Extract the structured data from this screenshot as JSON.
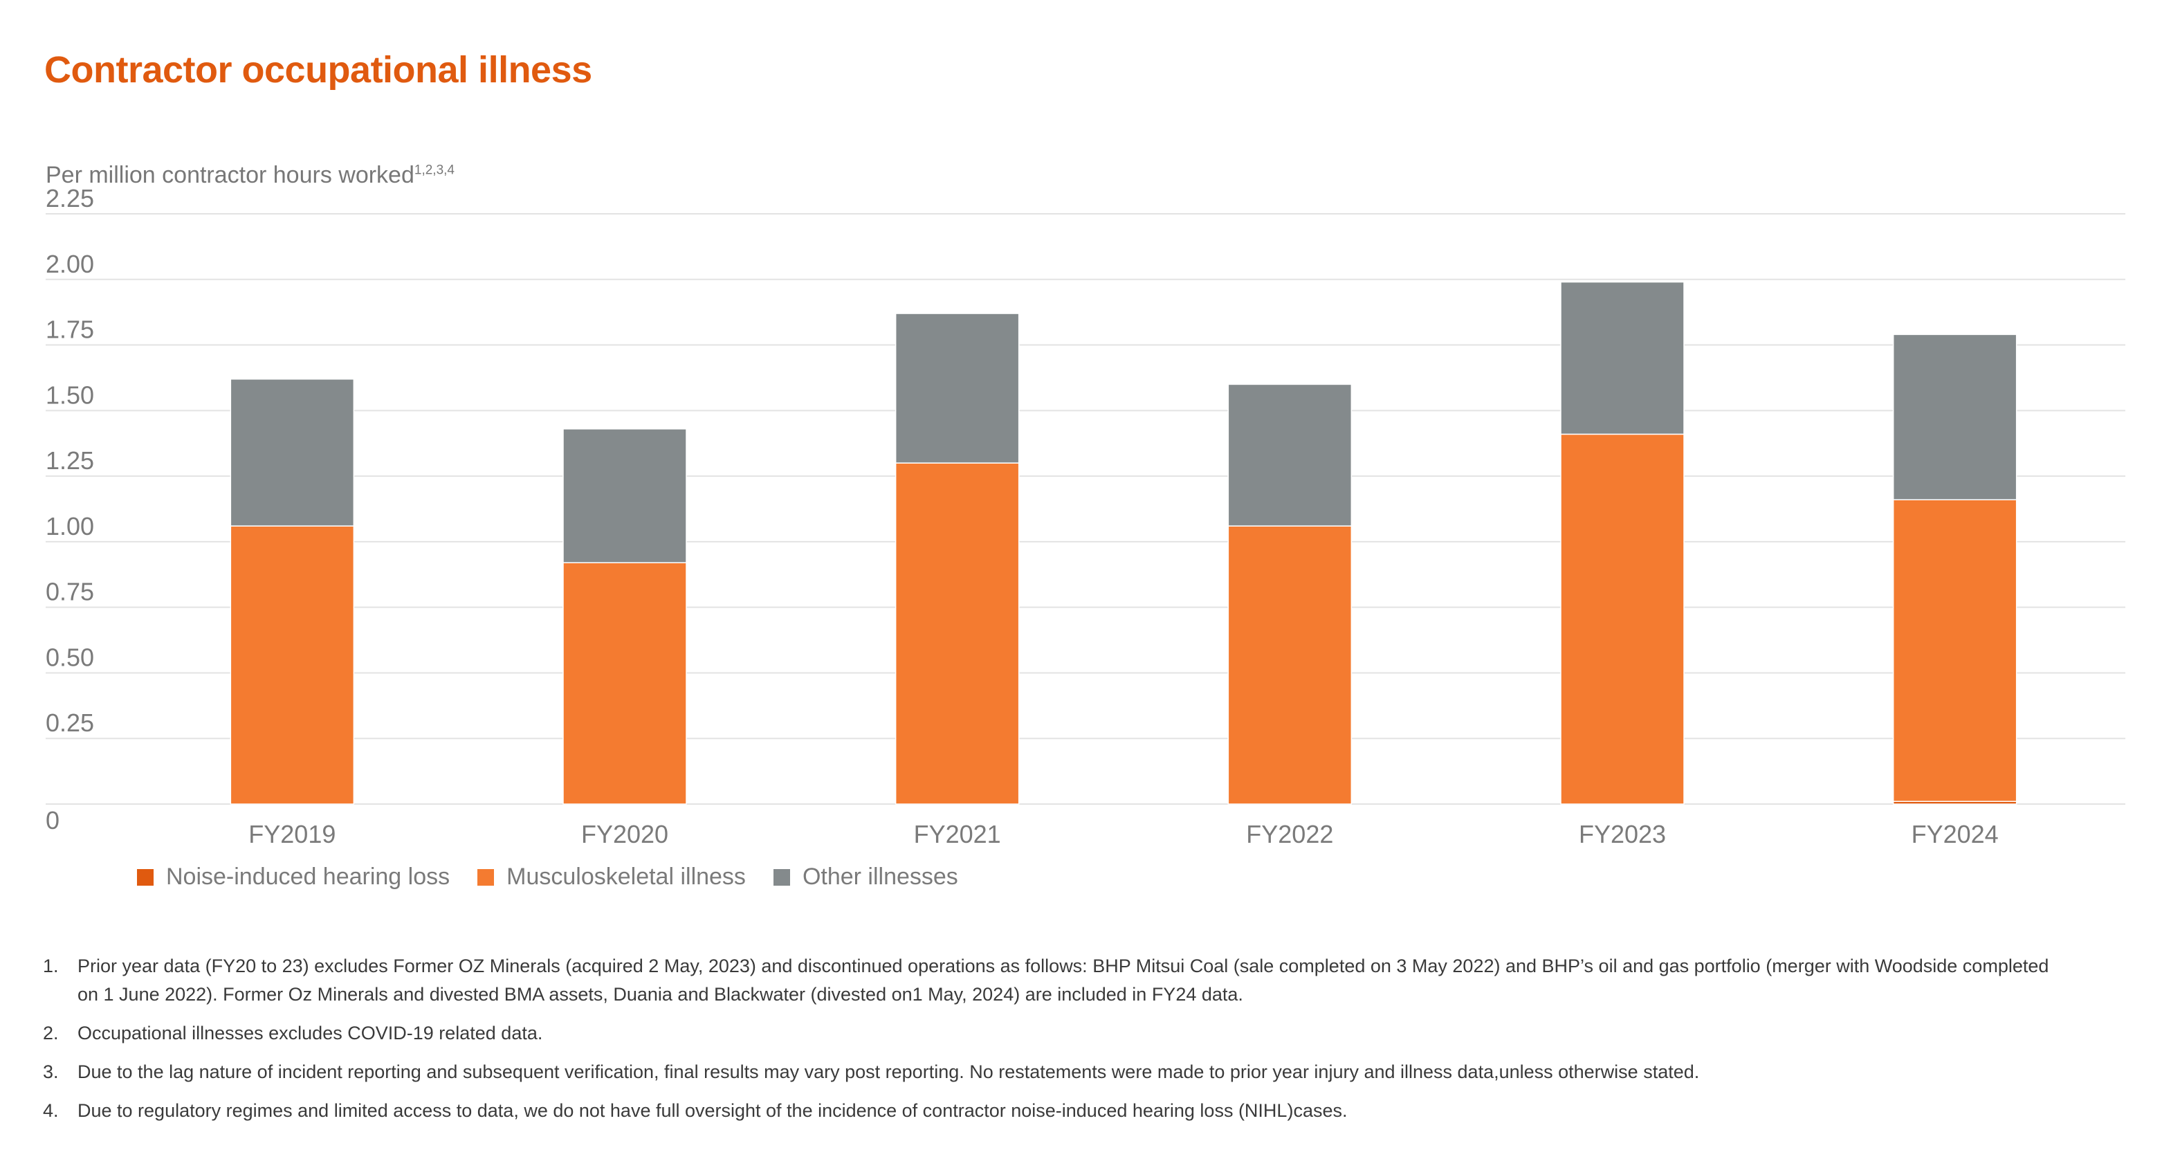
{
  "title": "Contractor occupational illness",
  "subtitle": "Per million contractor hours worked",
  "subtitle_sup": "1,2,3,4",
  "colors": {
    "title": "#E05A0F",
    "noise": "#E05A0F",
    "musculoskeletal": "#F47B30",
    "other": "#848A8C",
    "grid": "#e3e3e3",
    "axis_text": "#7a7a7a"
  },
  "chart_data": {
    "type": "bar",
    "stacked": true,
    "categories": [
      "FY2019",
      "FY2020",
      "FY2021",
      "FY2022",
      "FY2023",
      "FY2024"
    ],
    "series": [
      {
        "name": "Noise-induced hearing loss",
        "values": [
          0,
          0,
          0,
          0,
          0,
          0.01
        ]
      },
      {
        "name": "Musculoskeletal illness",
        "values": [
          1.06,
          0.92,
          1.3,
          1.06,
          1.41,
          1.15
        ]
      },
      {
        "name": "Other illnesses",
        "values": [
          0.56,
          0.51,
          0.57,
          0.54,
          0.58,
          0.63
        ]
      }
    ],
    "ylim": [
      0,
      2.25
    ],
    "yticks": [
      "0",
      "0.25",
      "0.50",
      "0.75",
      "1.00",
      "1.25",
      "1.50",
      "1.75",
      "2.00",
      "2.25"
    ],
    "grid": true,
    "legend": "bottom-left"
  },
  "footnotes": [
    {
      "num": "1.",
      "text": "Prior year data (FY20 to 23) excludes Former OZ Minerals (acquired 2 May, 2023) and discontinued operations as follows: BHP Mitsui Coal (sale completed on 3 May 2022) and BHP’s oil and gas portfolio (merger with Woodside completed on 1 June 2022). Former Oz Minerals and divested BMA assets, Duania and Blackwater (divested on1 May, 2024) are included in FY24 data."
    },
    {
      "num": "2.",
      "text": "Occupational illnesses excludes COVID-19 related data."
    },
    {
      "num": "3.",
      "text": "Due to the lag nature of incident reporting and subsequent verification, final results may vary post reporting. No restatements were made to prior year injury and illness data,unless otherwise stated."
    },
    {
      "num": "4.",
      "text": "Due to regulatory regimes and limited access to data, we do not have full oversight of the incidence of contractor noise-induced hearing loss (NIHL)cases."
    }
  ]
}
